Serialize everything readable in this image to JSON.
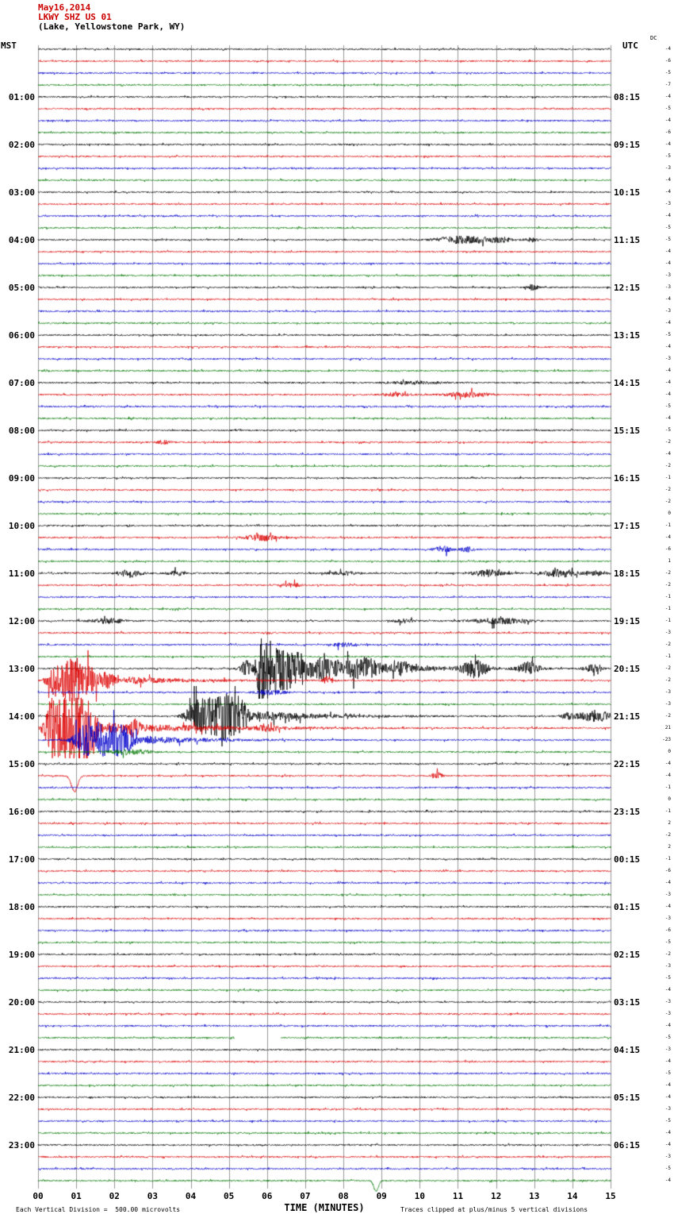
{
  "header": {
    "date": "May16,2014",
    "station": "LKWY SHZ US 01",
    "location": "(Lake, Yellowstone Park, WY)",
    "left_tz": "MST",
    "right_tz": "UTC",
    "dc_label": "DC"
  },
  "footer": {
    "scale": "Each Vertical Division =  500.00 microvolts",
    "xlabel": "TIME (MINUTES)",
    "clip_note": "Traces clipped at plus/minus 5 vertical divisions"
  },
  "colors": {
    "black": "#000000",
    "red": "#dd0000",
    "blue": "#0000cc",
    "green": "#007700",
    "grid": "#999999"
  },
  "chart_data": {
    "type": "line",
    "title": "LKWY SHZ US 01 webicorder seismogram",
    "x_range": [
      0,
      15
    ],
    "x_ticks": [
      "00",
      "01",
      "02",
      "03",
      "04",
      "05",
      "06",
      "07",
      "08",
      "09",
      "10",
      "11",
      "12",
      "13",
      "14",
      "15"
    ],
    "xlabel": "TIME (MINUTES)",
    "num_rows": 96,
    "rows_per_hour": 4,
    "minutes_per_row": 15,
    "trace_color_cycle": [
      "black",
      "red",
      "blue",
      "green"
    ],
    "division_microvolts": 500.0,
    "clip_divisions": 5,
    "left_labels": [
      "01:00",
      "02:00",
      "03:00",
      "04:00",
      "05:00",
      "06:00",
      "07:00",
      "08:00",
      "09:00",
      "10:00",
      "11:00",
      "12:00",
      "13:00",
      "14:00",
      "15:00",
      "16:00",
      "17:00",
      "18:00",
      "19:00",
      "20:00",
      "21:00",
      "22:00",
      "23:00"
    ],
    "right_labels": [
      "08:15",
      "09:15",
      "10:15",
      "11:15",
      "12:15",
      "13:15",
      "14:15",
      "15:15",
      "16:15",
      "17:15",
      "18:15",
      "19:15",
      "20:15",
      "21:15",
      "22:15",
      "23:15",
      "00:15",
      "01:15",
      "02:15",
      "03:15",
      "04:15",
      "05:15",
      "06:15"
    ],
    "dc_values": [
      -4,
      -6,
      -5,
      -7,
      -4,
      -5,
      -4,
      -6,
      -4,
      -5,
      -3,
      -4,
      -4,
      -3,
      -4,
      -5,
      -5,
      -4,
      -4,
      -3,
      -3,
      -4,
      -3,
      -4,
      -5,
      -4,
      -3,
      -4,
      -4,
      -4,
      -5,
      -4,
      -5,
      -2,
      -4,
      -2,
      -1,
      -2,
      -2,
      0,
      -1,
      -4,
      -6,
      1,
      -2,
      -2,
      -1,
      -1,
      -1,
      -3,
      -2,
      -1,
      -2,
      -2,
      -3,
      -3,
      -2,
      21,
      -23,
      0,
      -4,
      -4,
      -1,
      0,
      -1,
      2,
      -2,
      2,
      -1,
      -6,
      -4,
      -3,
      -4,
      -3,
      -6,
      -5,
      -2,
      -3,
      -5,
      -4,
      -3,
      -3,
      -4,
      -5,
      -3,
      -4,
      -5,
      -4,
      -4,
      -3,
      -5,
      -4,
      -4,
      -3,
      -5,
      -4
    ],
    "events": [
      {
        "r": 16,
        "t": 10.9,
        "w": 0.35,
        "a": 4
      },
      {
        "r": 16,
        "t": 11.6,
        "w": 0.3,
        "a": 3
      },
      {
        "r": 16,
        "t": 12.15,
        "w": 0.2,
        "a": 2.5
      },
      {
        "r": 16,
        "t": 12.9,
        "w": 0.12,
        "a": 2.5
      },
      {
        "r": 20,
        "t": 12.95,
        "w": 0.1,
        "a": 3.5
      },
      {
        "r": 28,
        "t": 9.8,
        "w": 0.5,
        "a": 1.8
      },
      {
        "r": 29,
        "t": 9.35,
        "w": 0.3,
        "a": 2
      },
      {
        "r": 29,
        "t": 11.25,
        "w": 0.4,
        "a": 3
      },
      {
        "r": 33,
        "t": 3.3,
        "w": 0.12,
        "a": 2.5
      },
      {
        "r": 41,
        "t": 5.85,
        "w": 0.3,
        "a": 4
      },
      {
        "r": 42,
        "t": 10.6,
        "w": 0.15,
        "a": 4
      },
      {
        "r": 42,
        "t": 11.25,
        "w": 0.12,
        "a": 3.5
      },
      {
        "r": 44,
        "t": 2.4,
        "w": 0.2,
        "a": 5
      },
      {
        "r": 44,
        "t": 3.6,
        "w": 0.15,
        "a": 3
      },
      {
        "r": 44,
        "t": 8.0,
        "w": 0.3,
        "a": 2
      },
      {
        "r": 44,
        "t": 11.8,
        "w": 0.3,
        "a": 4
      },
      {
        "r": 44,
        "t": 13.7,
        "w": 0.3,
        "a": 5
      },
      {
        "r": 44,
        "t": 14.6,
        "w": 0.2,
        "a": 3
      },
      {
        "r": 45,
        "t": 6.6,
        "w": 0.2,
        "a": 2.5
      },
      {
        "r": 48,
        "t": 1.8,
        "w": 0.3,
        "a": 3
      },
      {
        "r": 48,
        "t": 9.6,
        "w": 0.2,
        "a": 2
      },
      {
        "r": 48,
        "t": 12.1,
        "w": 0.5,
        "a": 3.5
      },
      {
        "r": 50,
        "t": 8.0,
        "w": 0.2,
        "a": 2.5
      },
      {
        "r": 52,
        "t": 5.45,
        "w": 0.1,
        "a": 10
      },
      {
        "r": 52,
        "t": 5.8,
        "w": 1.5,
        "a": 42,
        "s": "q"
      },
      {
        "r": 52,
        "t": 8.55,
        "w": 0.2,
        "a": 9
      },
      {
        "r": 52,
        "t": 9.55,
        "w": 0.15,
        "a": 6
      },
      {
        "r": 52,
        "t": 11.45,
        "w": 0.22,
        "a": 11
      },
      {
        "r": 52,
        "t": 12.85,
        "w": 0.2,
        "a": 8
      },
      {
        "r": 52,
        "t": 14.5,
        "w": 0.15,
        "a": 5
      },
      {
        "r": 53,
        "t": 0.45,
        "w": 0.15,
        "a": 18
      },
      {
        "r": 53,
        "t": 0.9,
        "w": 0.2,
        "a": 30
      },
      {
        "r": 53,
        "t": 1.4,
        "w": 0.2,
        "a": 16
      },
      {
        "r": 53,
        "t": 1.85,
        "w": 0.15,
        "a": 8
      },
      {
        "r": 53,
        "t": 2.4,
        "w": 1.4,
        "a": 4,
        "s": "q"
      },
      {
        "r": 53,
        "t": 7.6,
        "w": 0.1,
        "a": 5
      },
      {
        "r": 54,
        "t": 6.1,
        "w": 0.3,
        "a": 2.5
      },
      {
        "r": 56,
        "t": 4.15,
        "w": 0.2,
        "a": 15
      },
      {
        "r": 56,
        "t": 4.7,
        "w": 0.3,
        "a": 32
      },
      {
        "r": 56,
        "t": 5.25,
        "w": 0.2,
        "a": 20
      },
      {
        "r": 56,
        "t": 5.8,
        "w": 1.5,
        "a": 6,
        "s": "q"
      },
      {
        "r": 56,
        "t": 13.9,
        "w": 0.15,
        "a": 4
      },
      {
        "r": 56,
        "t": 14.6,
        "w": 0.3,
        "a": 7
      },
      {
        "r": 57,
        "t": 0.35,
        "w": 0.12,
        "a": 25
      },
      {
        "r": 57,
        "t": 0.8,
        "w": 0.3,
        "a": 46
      },
      {
        "r": 57,
        "t": 1.3,
        "w": 0.2,
        "a": 30
      },
      {
        "r": 57,
        "t": 1.9,
        "w": 2.5,
        "a": 6,
        "s": "q"
      },
      {
        "r": 57,
        "t": 2.5,
        "w": 0.1,
        "a": 8
      },
      {
        "r": 57,
        "t": 6.0,
        "w": 0.2,
        "a": 3
      },
      {
        "r": 58,
        "t": 1.15,
        "w": 0.15,
        "a": 10
      },
      {
        "r": 58,
        "t": 1.65,
        "w": 0.35,
        "a": 22
      },
      {
        "r": 58,
        "t": 2.25,
        "w": 0.25,
        "a": 14
      },
      {
        "r": 58,
        "t": 2.9,
        "w": 1.5,
        "a": 4,
        "s": "q"
      },
      {
        "r": 59,
        "t": 2.4,
        "w": 0.4,
        "a": 3
      },
      {
        "r": 61,
        "t": 0.95,
        "w": 0.08,
        "a": 20,
        "s": "sd"
      },
      {
        "r": 61,
        "t": 10.45,
        "w": 0.1,
        "a": 4
      },
      {
        "r": 95,
        "t": 8.85,
        "w": 0.06,
        "a": 13,
        "s": "sd"
      }
    ],
    "gaps": [
      {
        "r": 83,
        "t0": 5.15,
        "t1": 6.35
      }
    ]
  }
}
